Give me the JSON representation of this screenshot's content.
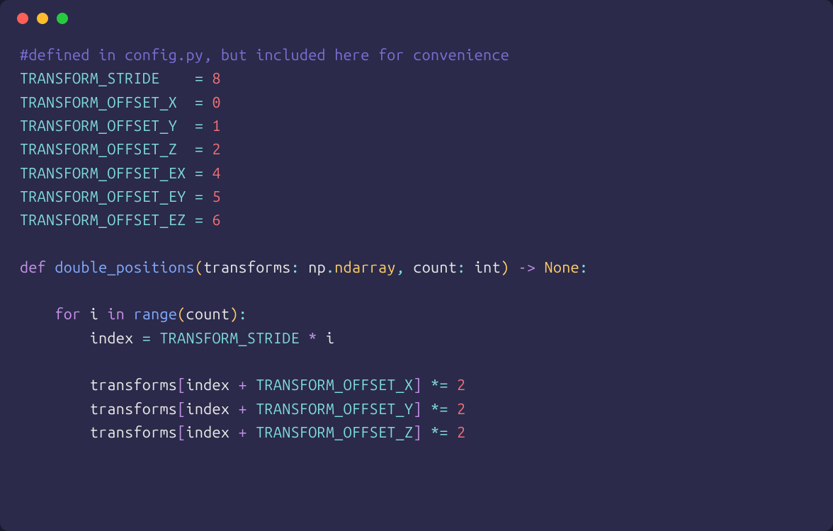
{
  "colors": {
    "window_bg": "#2b2a4a",
    "page_bg": "#1a1a2e",
    "dot_red": "#ff5f56",
    "dot_yellow": "#ffbd2e",
    "dot_green": "#27c93f",
    "comment": "#7b6fd6",
    "identifier": "#7fdbda",
    "text": "#e8e8e8",
    "number": "#f07178",
    "keyword": "#c792ea",
    "function": "#82aaff",
    "classname": "#ffcb6b",
    "paren": "#ffcb6b",
    "bracket": "#c792ea"
  },
  "titlebar": {
    "dots": [
      "close",
      "minimize",
      "zoom"
    ]
  },
  "code": {
    "comment": "#defined in config.py, but included here for convenience",
    "constants": [
      {
        "name": "TRANSFORM_STRIDE    ",
        "eq": "=",
        "value": "8"
      },
      {
        "name": "TRANSFORM_OFFSET_X  ",
        "eq": "=",
        "value": "0"
      },
      {
        "name": "TRANSFORM_OFFSET_Y  ",
        "eq": "=",
        "value": "1"
      },
      {
        "name": "TRANSFORM_OFFSET_Z  ",
        "eq": "=",
        "value": "2"
      },
      {
        "name": "TRANSFORM_OFFSET_EX ",
        "eq": "=",
        "value": "4"
      },
      {
        "name": "TRANSFORM_OFFSET_EY ",
        "eq": "=",
        "value": "5"
      },
      {
        "name": "TRANSFORM_OFFSET_EZ ",
        "eq": "=",
        "value": "6"
      }
    ],
    "fn": {
      "def_kw": "def",
      "name": "double_positions",
      "lparen": "(",
      "param1_name": "transforms",
      "colon1": ":",
      "param1_type_mod": "np",
      "param1_dot": ".",
      "param1_type": "ndarray",
      "comma": ",",
      "param2_name": "count",
      "colon2": ":",
      "param2_type": "int",
      "rparen": ")",
      "arrow": "->",
      "ret": "None",
      "end_colon": ":"
    },
    "loop": {
      "indent": "    ",
      "for_kw": "for",
      "var": "i",
      "in_kw": "in",
      "range_fn": "range",
      "lparen": "(",
      "arg": "count",
      "rparen": ")",
      "colon": ":"
    },
    "assign": {
      "indent": "        ",
      "lhs": "index",
      "eq": "=",
      "rhs_a": "TRANSFORM_STRIDE",
      "star": "*",
      "rhs_b": "i"
    },
    "mutations": [
      {
        "indent": "        ",
        "arr": "transforms",
        "lb": "[",
        "idx": "index",
        "plus": "+",
        "off": "TRANSFORM_OFFSET_X",
        "rb": "]",
        "op": "*=",
        "val": "2"
      },
      {
        "indent": "        ",
        "arr": "transforms",
        "lb": "[",
        "idx": "index",
        "plus": "+",
        "off": "TRANSFORM_OFFSET_Y",
        "rb": "]",
        "op": "*=",
        "val": "2"
      },
      {
        "indent": "        ",
        "arr": "transforms",
        "lb": "[",
        "idx": "index",
        "plus": "+",
        "off": "TRANSFORM_OFFSET_Z",
        "rb": "]",
        "op": "*=",
        "val": "2"
      }
    ]
  }
}
